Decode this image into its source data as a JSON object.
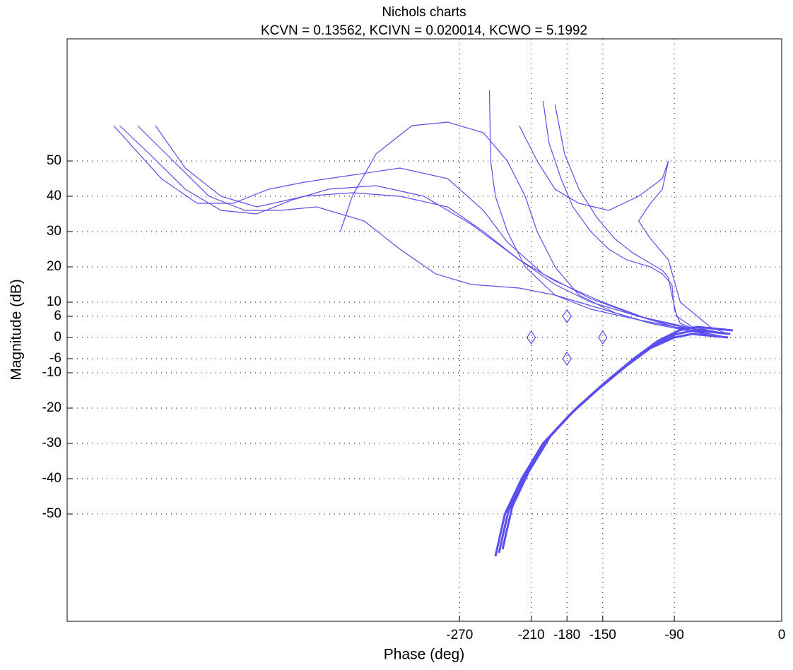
{
  "chart_data": {
    "type": "line",
    "title": "Nichols charts",
    "subtitle": "KCVN = 0.13562, KCIVN = 0.020014, KCWO = 5.1992",
    "x_label": "Phase (deg)",
    "y_label": "Magnitude (dB)",
    "xlim": [
      -599,
      0
    ],
    "ylim": [
      -80.4,
      84.6
    ],
    "xticks": [
      -270,
      -210,
      -180,
      -150,
      -90,
      0
    ],
    "yticks": [
      -50,
      -40,
      -30,
      -20,
      -10,
      -6,
      0,
      6,
      10,
      20,
      30,
      40,
      50
    ],
    "grid": true,
    "series": [
      {
        "color": "#5a4ef0",
        "x": [
          -555,
          -530,
          -500,
          -470,
          -440,
          -410,
          -380,
          -340,
          -300,
          -260,
          -220,
          -190,
          -160,
          -130,
          -100,
          -80,
          -60,
          -45
        ],
        "values": [
          60,
          52,
          42,
          36,
          35,
          39,
          42,
          43,
          40,
          32,
          22,
          15,
          10,
          7,
          4,
          2,
          1,
          0
        ]
      },
      {
        "color": "#5a4ef0",
        "x": [
          -540,
          -510,
          -480,
          -450,
          -420,
          -390,
          -350,
          -320,
          -290,
          -260,
          -220,
          -190,
          -160,
          -120,
          -90,
          -60,
          -45
        ],
        "values": [
          60,
          50,
          40,
          36,
          36,
          37,
          33,
          25,
          18,
          15,
          14,
          12,
          9,
          5,
          3,
          1,
          0
        ]
      },
      {
        "color": "#5a4ef0",
        "x": [
          -560,
          -520,
          -490,
          -460,
          -430,
          -400,
          -360,
          -320,
          -280,
          -250,
          -230,
          -200,
          -160,
          -120,
          -80,
          -50
        ],
        "values": [
          60,
          45,
          38,
          38,
          42,
          44,
          46,
          48,
          45,
          36,
          27,
          18,
          11,
          6,
          3,
          1
        ]
      },
      {
        "color": "#5a4ef0",
        "x": [
          -525,
          -500,
          -470,
          -440,
          -400,
          -360,
          -320,
          -280,
          -250,
          -220,
          -190,
          -150,
          -110,
          -70,
          -45
        ],
        "values": [
          60,
          48,
          40,
          37,
          40,
          41,
          40,
          37,
          30,
          22,
          16,
          10,
          5,
          2,
          1
        ]
      },
      {
        "color": "#5a4ef0",
        "x": [
          -370,
          -360,
          -340,
          -310,
          -280,
          -250,
          -230,
          -215,
          -205,
          -190,
          -170,
          -140,
          -110,
          -80,
          -50
        ],
        "values": [
          30,
          40,
          52,
          60,
          61,
          58,
          50,
          40,
          30,
          20,
          12,
          7,
          4,
          2,
          0
        ]
      },
      {
        "color": "#5a4ef0",
        "x": [
          -245,
          -244,
          -240,
          -230,
          -215,
          -190,
          -160,
          -120,
          -90,
          -60,
          -45
        ],
        "values": [
          70,
          50,
          40,
          30,
          20,
          12,
          8,
          5,
          3,
          2,
          1
        ]
      },
      {
        "color": "#5a4ef0",
        "x": [
          -200,
          -195,
          -185,
          -175,
          -160,
          -145,
          -130,
          -110,
          -100,
          -92,
          -90,
          -85,
          -70,
          -45
        ],
        "values": [
          67,
          55,
          45,
          37,
          30,
          25,
          22,
          20,
          18,
          15,
          8,
          4,
          2,
          1
        ]
      },
      {
        "color": "#5a4ef0",
        "x": [
          -190,
          -182,
          -170,
          -155,
          -140,
          -125,
          -110,
          -100,
          -95,
          -92,
          -88,
          -75,
          -45
        ],
        "values": [
          66,
          52,
          42,
          34,
          28,
          24,
          21,
          19,
          17,
          12,
          6,
          3,
          1
        ]
      },
      {
        "color": "#5a4ef0",
        "x": [
          -220,
          -205,
          -190,
          -170,
          -145,
          -120,
          -100,
          -95,
          -100,
          -110,
          -120,
          -110,
          -95,
          -85,
          -60,
          -45
        ],
        "values": [
          60,
          50,
          42,
          38,
          36,
          40,
          45,
          50,
          42,
          38,
          33,
          28,
          22,
          10,
          3,
          1
        ]
      },
      {
        "color": "#5a4ef0",
        "x": [
          -240,
          -232,
          -218,
          -200,
          -178,
          -155,
          -130,
          -110,
          -90,
          -75,
          -45
        ],
        "values": [
          -62,
          -50,
          -40,
          -30,
          -22,
          -15,
          -8,
          -3,
          0,
          1,
          0
        ]
      },
      {
        "color": "#5a4ef0",
        "x": [
          -237,
          -229,
          -215,
          -197,
          -175,
          -152,
          -127,
          -107,
          -88,
          -73,
          -43
        ],
        "values": [
          -61,
          -49,
          -39,
          -29,
          -21,
          -14,
          -7,
          -2,
          1,
          2,
          1
        ]
      },
      {
        "color": "#5a4ef0",
        "x": [
          -234,
          -226,
          -212,
          -194,
          -172,
          -149,
          -124,
          -104,
          -86,
          -71,
          -41
        ],
        "values": [
          -60,
          -48,
          -38,
          -28,
          -20,
          -13,
          -6,
          -1,
          2,
          3,
          2
        ]
      }
    ],
    "markers": {
      "color": "#5a4ef0",
      "x": [
        -210,
        -180,
        -180,
        -150
      ],
      "values": [
        0,
        6,
        -6,
        0
      ]
    }
  }
}
